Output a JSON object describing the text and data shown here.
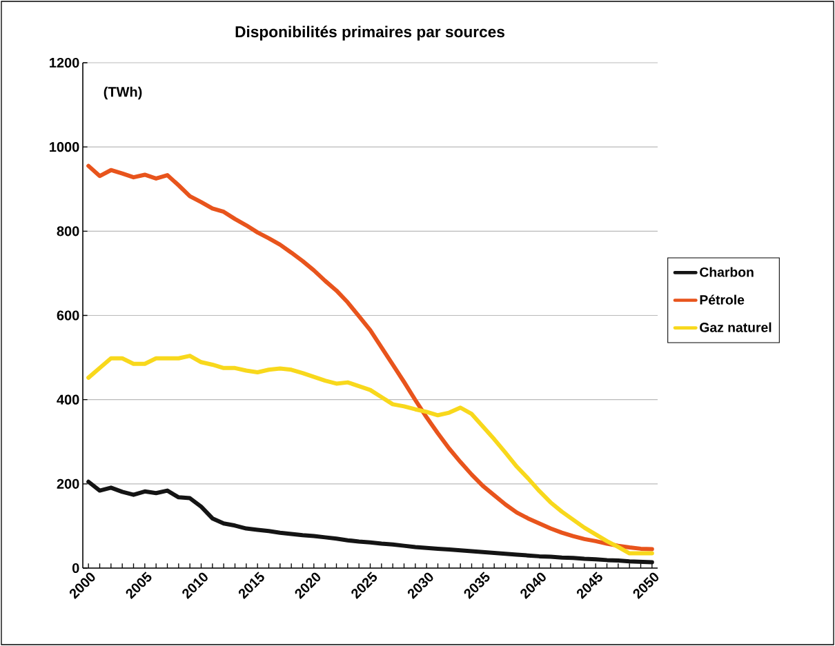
{
  "chart_data": {
    "type": "line",
    "title": "Disponibilités primaires par sources",
    "ylabel": "(TWh)",
    "x": [
      2000,
      2001,
      2002,
      2003,
      2004,
      2005,
      2006,
      2007,
      2008,
      2009,
      2010,
      2011,
      2012,
      2013,
      2014,
      2015,
      2016,
      2017,
      2018,
      2019,
      2020,
      2021,
      2022,
      2023,
      2024,
      2025,
      2026,
      2027,
      2028,
      2029,
      2030,
      2031,
      2032,
      2033,
      2034,
      2035,
      2036,
      2037,
      2038,
      2039,
      2040,
      2041,
      2042,
      2043,
      2044,
      2045,
      2046,
      2047,
      2048,
      2049,
      2050
    ],
    "series": [
      {
        "name": "Charbon",
        "color": "#141414",
        "values": [
          205,
          184,
          191,
          181,
          174,
          182,
          178,
          184,
          168,
          166,
          146,
          118,
          106,
          101,
          94,
          91,
          88,
          84,
          81,
          78,
          76,
          73,
          70,
          66,
          63,
          61,
          58,
          56,
          53,
          50,
          48,
          46,
          44,
          42,
          40,
          38,
          36,
          34,
          32,
          30,
          28,
          27,
          25,
          24,
          22,
          21,
          19,
          18,
          16,
          15,
          14
        ]
      },
      {
        "name": "Pétrole",
        "color": "#e8541c",
        "values": [
          955,
          931,
          945,
          937,
          928,
          934,
          925,
          933,
          909,
          883,
          869,
          854,
          846,
          829,
          814,
          797,
          783,
          768,
          749,
          729,
          707,
          682,
          659,
          631,
          598,
          565,
          524,
          483,
          442,
          399,
          358,
          320,
          284,
          252,
          222,
          195,
          173,
          151,
          132,
          118,
          106,
          94,
          84,
          76,
          69,
          64,
          58,
          53,
          49,
          46,
          45
        ]
      },
      {
        "name": "Gaz naturel",
        "color": "#f8d81c",
        "values": [
          452,
          475,
          498,
          498,
          485,
          485,
          498,
          498,
          498,
          504,
          489,
          483,
          475,
          475,
          469,
          465,
          471,
          474,
          471,
          463,
          454,
          445,
          438,
          441,
          432,
          423,
          406,
          389,
          384,
          377,
          371,
          363,
          369,
          381,
          366,
          336,
          306,
          274,
          241,
          213,
          183,
          156,
          134,
          115,
          96,
          80,
          64,
          50,
          35,
          35,
          35
        ]
      }
    ],
    "xlim": [
      1999.5,
      2050.5
    ],
    "ylim": [
      0,
      1200
    ],
    "xticks": [
      2000,
      {
        "value": 2001,
        "label": null
      },
      {
        "value": 2002,
        "label": null
      },
      {
        "value": 2003,
        "label": null
      },
      {
        "value": 2004,
        "label": null
      },
      2005,
      {
        "value": 2006,
        "label": null
      },
      {
        "value": 2007,
        "label": null
      },
      {
        "value": 2008,
        "label": null
      },
      {
        "value": 2009,
        "label": null
      },
      2010,
      {
        "value": 2011,
        "label": null
      },
      {
        "value": 2012,
        "label": null
      },
      {
        "value": 2013,
        "label": null
      },
      {
        "value": 2014,
        "label": null
      },
      2015,
      {
        "value": 2016,
        "label": null
      },
      {
        "value": 2017,
        "label": null
      },
      {
        "value": 2018,
        "label": null
      },
      {
        "value": 2019,
        "label": null
      },
      2020,
      {
        "value": 2021,
        "label": null
      },
      {
        "value": 2022,
        "label": null
      },
      {
        "value": 2023,
        "label": null
      },
      {
        "value": 2024,
        "label": null
      },
      2025,
      {
        "value": 2026,
        "label": null
      },
      {
        "value": 2027,
        "label": null
      },
      {
        "value": 2028,
        "label": null
      },
      {
        "value": 2029,
        "label": null
      },
      2030,
      {
        "value": 2031,
        "label": null
      },
      {
        "value": 2032,
        "label": null
      },
      {
        "value": 2033,
        "label": null
      },
      {
        "value": 2034,
        "label": null
      },
      2035,
      {
        "value": 2036,
        "label": null
      },
      {
        "value": 2037,
        "label": null
      },
      {
        "value": 2038,
        "label": null
      },
      {
        "value": 2039,
        "label": null
      },
      2040,
      {
        "value": 2041,
        "label": null
      },
      {
        "value": 2042,
        "label": null
      },
      {
        "value": 2043,
        "label": null
      },
      {
        "value": 2044,
        "label": null
      },
      2045,
      {
        "value": 2046,
        "label": null
      },
      {
        "value": 2047,
        "label": null
      },
      {
        "value": 2048,
        "label": null
      },
      {
        "value": 2049,
        "label": null
      },
      2050
    ],
    "yticks": [
      0,
      200,
      400,
      600,
      800,
      1000,
      1200
    ],
    "grid": "y",
    "legend": "right",
    "marker": "none",
    "line_style": "solid"
  }
}
